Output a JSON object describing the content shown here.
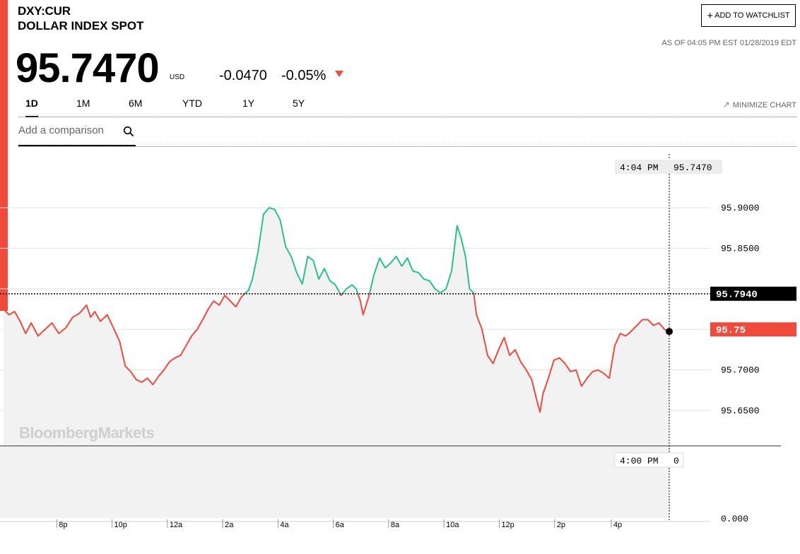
{
  "header": {
    "ticker": "DXY:CUR",
    "name": "DOLLAR INDEX SPOT",
    "price": "95.7470",
    "currency": "USD",
    "change": "-0.0470",
    "change_pct": "-0.05%",
    "as_of": "AS OF 04:05 PM EST 01/28/2019 EDT",
    "watchlist_label": "ADD TO WATCHLIST",
    "minimize_label": "MINIMIZE CHART",
    "down_color": "#ef4a3c"
  },
  "tabs": [
    {
      "label": "1D",
      "active": true
    },
    {
      "label": "1M",
      "active": false
    },
    {
      "label": "6M",
      "active": false
    },
    {
      "label": "YTD",
      "active": false
    },
    {
      "label": "1Y",
      "active": false
    },
    {
      "label": "5Y",
      "active": false
    }
  ],
  "comparison": {
    "placeholder": "Add a comparison"
  },
  "watermark": "BloombergMarkets",
  "chart_data": {
    "type": "line",
    "title": "",
    "xlabel": "",
    "ylabel": "",
    "x_ticks": [
      "8p",
      "10p",
      "12a",
      "2a",
      "4a",
      "6a",
      "8a",
      "10a",
      "12p",
      "2p",
      "4p"
    ],
    "y_ticks": [
      "95.9000",
      "95.8500",
      "95.7000",
      "95.6500"
    ],
    "ylim": [
      95.61,
      95.945
    ],
    "previous_close": 95.794,
    "previous_close_label": "95.7940",
    "last_value": 95.75,
    "last_value_label": "95.75",
    "crosshair": {
      "time": "4:04 PM",
      "value": "95.7470"
    },
    "volume_crosshair": {
      "time": "4:00 PM",
      "value": "0"
    },
    "volume_axis_label": "0.000",
    "colors": {
      "above": "#25c28b",
      "below": "#ef4a3c",
      "area": "#f2f2f2",
      "prev_close_badge": "#000000",
      "last_badge": "#ef4a3c"
    },
    "series": [
      {
        "points": [
          [
            18.0,
            95.775
          ],
          [
            18.2,
            95.768
          ],
          [
            18.4,
            95.772
          ],
          [
            18.6,
            95.76
          ],
          [
            18.8,
            95.745
          ],
          [
            19.0,
            95.758
          ],
          [
            19.25,
            95.742
          ],
          [
            19.5,
            95.75
          ],
          [
            19.75,
            95.758
          ],
          [
            20.0,
            95.745
          ],
          [
            20.25,
            95.752
          ],
          [
            20.5,
            95.765
          ],
          [
            20.75,
            95.77
          ],
          [
            21.0,
            95.78
          ],
          [
            21.15,
            95.765
          ],
          [
            21.3,
            95.772
          ],
          [
            21.5,
            95.76
          ],
          [
            21.75,
            95.768
          ],
          [
            22.0,
            95.75
          ],
          [
            22.2,
            95.735
          ],
          [
            22.4,
            95.705
          ],
          [
            22.6,
            95.698
          ],
          [
            22.8,
            95.688
          ],
          [
            23.0,
            95.685
          ],
          [
            23.2,
            95.69
          ],
          [
            23.4,
            95.682
          ],
          [
            23.6,
            95.692
          ],
          [
            23.8,
            95.7
          ],
          [
            24.0,
            95.71
          ],
          [
            24.2,
            95.715
          ],
          [
            24.4,
            95.718
          ],
          [
            24.6,
            95.73
          ],
          [
            24.8,
            95.742
          ],
          [
            25.0,
            95.75
          ],
          [
            25.2,
            95.762
          ],
          [
            25.4,
            95.775
          ],
          [
            25.6,
            95.785
          ],
          [
            25.8,
            95.78
          ],
          [
            26.0,
            95.792
          ],
          [
            26.2,
            95.785
          ],
          [
            26.4,
            95.778
          ],
          [
            26.6,
            95.79
          ],
          [
            26.75,
            95.795
          ],
          [
            26.85,
            95.798
          ],
          [
            27.0,
            95.812
          ],
          [
            27.2,
            95.845
          ],
          [
            27.4,
            95.892
          ],
          [
            27.6,
            95.9
          ],
          [
            27.8,
            95.898
          ],
          [
            28.0,
            95.885
          ],
          [
            28.2,
            95.852
          ],
          [
            28.4,
            95.84
          ],
          [
            28.6,
            95.82
          ],
          [
            28.8,
            95.806
          ],
          [
            29.0,
            95.84
          ],
          [
            29.2,
            95.835
          ],
          [
            29.4,
            95.812
          ],
          [
            29.6,
            95.825
          ],
          [
            29.8,
            95.81
          ],
          [
            30.0,
            95.805
          ],
          [
            30.2,
            95.792
          ],
          [
            30.4,
            95.8
          ],
          [
            30.6,
            95.805
          ],
          [
            30.75,
            95.8
          ],
          [
            30.9,
            95.785
          ],
          [
            31.0,
            95.768
          ],
          [
            31.2,
            95.79
          ],
          [
            31.4,
            95.818
          ],
          [
            31.6,
            95.838
          ],
          [
            31.8,
            95.826
          ],
          [
            32.0,
            95.832
          ],
          [
            32.2,
            95.84
          ],
          [
            32.4,
            95.828
          ],
          [
            32.6,
            95.838
          ],
          [
            32.8,
            95.822
          ],
          [
            33.0,
            95.82
          ],
          [
            33.2,
            95.812
          ],
          [
            33.4,
            95.81
          ],
          [
            33.6,
            95.8
          ],
          [
            33.8,
            95.795
          ],
          [
            34.0,
            95.8
          ],
          [
            34.2,
            95.822
          ],
          [
            34.4,
            95.878
          ],
          [
            34.55,
            95.862
          ],
          [
            34.7,
            95.84
          ],
          [
            34.85,
            95.8
          ],
          [
            35.0,
            95.795
          ],
          [
            35.1,
            95.768
          ],
          [
            35.3,
            95.75
          ],
          [
            35.5,
            95.718
          ],
          [
            35.7,
            95.708
          ],
          [
            35.9,
            95.725
          ],
          [
            36.1,
            95.74
          ],
          [
            36.3,
            95.718
          ],
          [
            36.5,
            95.725
          ],
          [
            36.7,
            95.71
          ],
          [
            36.9,
            95.7
          ],
          [
            37.1,
            95.688
          ],
          [
            37.3,
            95.66
          ],
          [
            37.4,
            95.648
          ],
          [
            37.5,
            95.67
          ],
          [
            37.7,
            95.69
          ],
          [
            37.9,
            95.712
          ],
          [
            38.1,
            95.715
          ],
          [
            38.3,
            95.708
          ],
          [
            38.5,
            95.698
          ],
          [
            38.7,
            95.7
          ],
          [
            38.9,
            95.68
          ],
          [
            39.1,
            95.69
          ],
          [
            39.3,
            95.698
          ],
          [
            39.5,
            95.7
          ],
          [
            39.7,
            95.696
          ],
          [
            39.9,
            95.69
          ],
          [
            40.1,
            95.73
          ],
          [
            40.3,
            95.745
          ],
          [
            40.5,
            95.742
          ],
          [
            40.7,
            95.748
          ],
          [
            40.9,
            95.755
          ],
          [
            41.1,
            95.762
          ],
          [
            41.3,
            95.762
          ],
          [
            41.5,
            95.755
          ],
          [
            41.7,
            95.758
          ],
          [
            41.9,
            95.75
          ],
          [
            42.07,
            95.7475
          ]
        ]
      }
    ]
  }
}
